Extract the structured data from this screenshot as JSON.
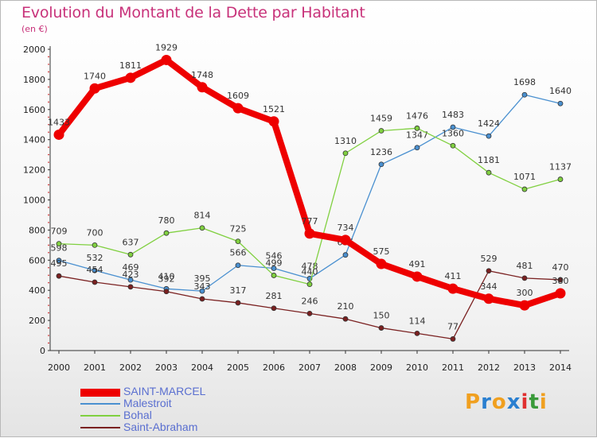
{
  "title": "Evolution du Montant de la Dette par Habitant",
  "subtitle": "(en €)",
  "logo": {
    "text": "Proxiti",
    "letters": [
      "P",
      "r",
      "o",
      "x",
      "i",
      "t",
      "i"
    ],
    "colors": [
      "#f0a020",
      "#2a7fd0",
      "#f0a020",
      "#2a7fd0",
      "#e03030",
      "#3a9a3a",
      "#f0a020"
    ]
  },
  "chart_data": {
    "type": "line",
    "title": "Evolution du Montant de la Dette par Habitant",
    "subtitle": "(en €)",
    "x": [
      "2000",
      "2001",
      "2002",
      "2003",
      "2004",
      "2005",
      "2006",
      "2007",
      "2008",
      "2009",
      "2010",
      "2011",
      "2012",
      "2013",
      "2014"
    ],
    "ylim": [
      0,
      2000
    ],
    "yticks": [
      0,
      200,
      400,
      600,
      800,
      1000,
      1200,
      1400,
      1600,
      1800,
      2000
    ],
    "grid": false,
    "legend_position": "bottom-left",
    "series": [
      {
        "name": "SAINT-MARCEL",
        "color": "#ee0000",
        "thick": true,
        "values": [
          1433,
          1740,
          1811,
          1929,
          1748,
          1609,
          1521,
          777,
          734,
          575,
          491,
          411,
          344,
          300,
          380
        ]
      },
      {
        "name": "Malestroit",
        "color": "#4a90d0",
        "thick": false,
        "values": [
          598,
          532,
          469,
          410,
          395,
          566,
          546,
          478,
          635,
          1236,
          1347,
          1483,
          1424,
          1698,
          1640
        ]
      },
      {
        "name": "Bohal",
        "color": "#80d040",
        "thick": false,
        "values": [
          709,
          700,
          637,
          780,
          814,
          725,
          499,
          440,
          1310,
          1459,
          1476,
          1360,
          1181,
          1071,
          1137
        ]
      },
      {
        "name": "Saint-Abraham",
        "color": "#7a2020",
        "thick": false,
        "values": [
          495,
          454,
          423,
          392,
          343,
          317,
          281,
          246,
          210,
          150,
          114,
          77,
          529,
          481,
          470
        ]
      }
    ]
  }
}
